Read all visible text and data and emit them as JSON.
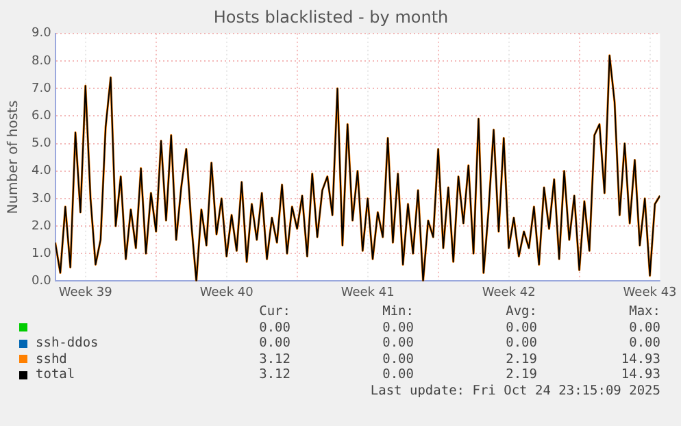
{
  "chart_data": {
    "type": "line",
    "title": "Hosts blacklisted - by month",
    "ylabel": "Number of hosts",
    "x": [
      "2025-09-24T00:00",
      "2025-09-24T06:00",
      "2025-09-24T12:00",
      "2025-09-24T18:00",
      "2025-09-25T00:00",
      "2025-09-25T06:00",
      "2025-09-25T12:00",
      "2025-09-25T18:00",
      "2025-09-26T00:00",
      "2025-09-26T06:00",
      "2025-09-26T12:00",
      "2025-09-26T18:00",
      "2025-09-27T00:00",
      "2025-09-27T06:00",
      "2025-09-27T12:00",
      "2025-09-27T18:00",
      "2025-09-28T00:00",
      "2025-09-28T06:00",
      "2025-09-28T12:00",
      "2025-09-28T18:00",
      "2025-09-29T00:00",
      "2025-09-29T06:00",
      "2025-09-29T12:00",
      "2025-09-29T18:00",
      "2025-09-30T00:00",
      "2025-09-30T06:00",
      "2025-09-30T12:00",
      "2025-09-30T18:00",
      "2025-10-01T00:00",
      "2025-10-01T06:00",
      "2025-10-01T12:00",
      "2025-10-01T18:00",
      "2025-10-02T00:00",
      "2025-10-02T06:00",
      "2025-10-02T12:00",
      "2025-10-02T18:00",
      "2025-10-03T00:00",
      "2025-10-03T06:00",
      "2025-10-03T12:00",
      "2025-10-03T18:00",
      "2025-10-04T00:00",
      "2025-10-04T06:00",
      "2025-10-04T12:00",
      "2025-10-04T18:00",
      "2025-10-05T00:00",
      "2025-10-05T06:00",
      "2025-10-05T12:00",
      "2025-10-05T18:00",
      "2025-10-06T00:00",
      "2025-10-06T06:00",
      "2025-10-06T12:00",
      "2025-10-06T18:00",
      "2025-10-07T00:00",
      "2025-10-07T06:00",
      "2025-10-07T12:00",
      "2025-10-07T18:00",
      "2025-10-08T00:00",
      "2025-10-08T06:00",
      "2025-10-08T12:00",
      "2025-10-08T18:00",
      "2025-10-09T00:00",
      "2025-10-09T06:00",
      "2025-10-09T12:00",
      "2025-10-09T18:00",
      "2025-10-10T00:00",
      "2025-10-10T06:00",
      "2025-10-10T12:00",
      "2025-10-10T18:00",
      "2025-10-11T00:00",
      "2025-10-11T06:00",
      "2025-10-11T12:00",
      "2025-10-11T18:00",
      "2025-10-12T00:00",
      "2025-10-12T06:00",
      "2025-10-12T12:00",
      "2025-10-12T18:00",
      "2025-10-13T00:00",
      "2025-10-13T06:00",
      "2025-10-13T12:00",
      "2025-10-13T18:00",
      "2025-10-14T00:00",
      "2025-10-14T06:00",
      "2025-10-14T12:00",
      "2025-10-14T18:00",
      "2025-10-15T00:00",
      "2025-10-15T06:00",
      "2025-10-15T12:00",
      "2025-10-15T18:00",
      "2025-10-16T00:00",
      "2025-10-16T06:00",
      "2025-10-16T12:00",
      "2025-10-16T18:00",
      "2025-10-17T00:00",
      "2025-10-17T06:00",
      "2025-10-17T12:00",
      "2025-10-17T18:00",
      "2025-10-18T00:00",
      "2025-10-18T06:00",
      "2025-10-18T12:00",
      "2025-10-18T18:00",
      "2025-10-19T00:00",
      "2025-10-19T06:00",
      "2025-10-19T12:00",
      "2025-10-19T18:00",
      "2025-10-20T00:00",
      "2025-10-20T06:00",
      "2025-10-20T12:00",
      "2025-10-20T18:00",
      "2025-10-21T00:00",
      "2025-10-21T06:00",
      "2025-10-21T12:00",
      "2025-10-21T18:00",
      "2025-10-22T00:00",
      "2025-10-22T06:00",
      "2025-10-22T12:00",
      "2025-10-22T18:00",
      "2025-10-23T00:00",
      "2025-10-23T06:00",
      "2025-10-23T12:00",
      "2025-10-23T18:00",
      "2025-10-24T00:00"
    ],
    "series": [
      {
        "color": "#00cc00",
        "values": [
          null,
          null,
          null,
          null,
          null,
          null,
          null,
          null,
          null,
          null,
          null,
          null,
          null,
          null,
          null,
          null,
          null,
          null,
          null,
          null,
          null,
          null,
          null,
          null,
          null,
          null,
          null,
          null,
          null,
          null,
          null,
          null,
          null,
          null,
          null,
          null,
          null,
          null,
          null,
          null,
          null,
          null,
          null,
          null,
          null,
          null,
          null,
          null,
          null,
          null,
          null,
          null,
          null,
          null,
          null,
          null,
          null,
          null,
          null,
          null,
          null,
          null,
          null,
          null,
          null,
          null,
          null,
          null,
          null,
          null,
          null,
          null,
          null,
          null,
          null,
          null,
          null,
          null,
          null,
          null,
          null,
          null,
          null,
          null,
          null,
          null,
          null,
          null,
          null,
          null,
          null,
          null,
          null,
          null,
          null,
          null,
          null,
          null,
          null,
          null,
          null,
          null,
          null,
          null,
          null,
          null,
          null,
          null,
          null,
          null,
          null,
          null,
          null,
          null,
          null,
          null,
          null,
          null,
          null,
          null,
          null
        ]
      },
      {
        "name": "ssh-ddos",
        "color": "#0066b3",
        "values": [
          null,
          null,
          null,
          null,
          null,
          null,
          null,
          null,
          null,
          null,
          null,
          null,
          null,
          null,
          null,
          null,
          null,
          null,
          null,
          null,
          null,
          null,
          null,
          null,
          null,
          null,
          null,
          null,
          null,
          null,
          null,
          null,
          null,
          null,
          null,
          null,
          null,
          null,
          null,
          null,
          null,
          null,
          null,
          null,
          null,
          null,
          null,
          null,
          null,
          null,
          null,
          null,
          null,
          null,
          null,
          null,
          null,
          null,
          null,
          null,
          null,
          null,
          null,
          null,
          null,
          null,
          null,
          null,
          null,
          null,
          null,
          null,
          null,
          null,
          null,
          null,
          null,
          null,
          null,
          null,
          null,
          null,
          null,
          null,
          null,
          null,
          null,
          null,
          null,
          null,
          null,
          null,
          null,
          null,
          null,
          null,
          null,
          null,
          null,
          null,
          null,
          null,
          null,
          null,
          null,
          null,
          null,
          null,
          null,
          null,
          null,
          null,
          null,
          null,
          null,
          null,
          null,
          null,
          null,
          null,
          null
        ]
      },
      {
        "name": "sshd",
        "color": "#ff8000",
        "values": [
          1.4,
          0.3,
          2.7,
          0.5,
          5.4,
          2.5,
          7.1,
          3.0,
          0.6,
          1.5,
          5.6,
          7.4,
          2.0,
          3.8,
          0.8,
          2.6,
          1.2,
          4.1,
          1.0,
          3.2,
          1.8,
          5.1,
          2.2,
          5.3,
          1.5,
          3.4,
          4.8,
          2.1,
          0.0,
          2.6,
          1.3,
          4.3,
          1.7,
          3.0,
          0.9,
          2.4,
          1.1,
          3.6,
          0.7,
          2.8,
          1.5,
          3.2,
          0.8,
          2.3,
          1.4,
          3.5,
          1.0,
          2.7,
          1.9,
          3.1,
          0.9,
          3.9,
          1.6,
          3.3,
          3.8,
          2.4,
          7.0,
          1.3,
          5.7,
          2.2,
          4.0,
          1.1,
          3.0,
          0.8,
          2.5,
          1.6,
          5.2,
          1.4,
          3.9,
          0.6,
          2.8,
          1.0,
          3.3,
          0.0,
          2.2,
          1.6,
          4.8,
          1.2,
          3.4,
          0.7,
          3.8,
          2.1,
          4.2,
          1.0,
          5.9,
          0.3,
          2.6,
          5.5,
          1.8,
          5.2,
          1.2,
          2.3,
          0.9,
          1.8,
          1.2,
          2.7,
          0.6,
          3.4,
          1.9,
          3.7,
          0.8,
          4.0,
          1.5,
          3.1,
          0.4,
          2.9,
          1.1,
          5.3,
          5.7,
          3.2,
          8.2,
          6.5,
          2.4,
          5.0,
          2.1,
          4.4,
          1.3,
          3.0,
          0.2,
          2.8,
          3.1
        ]
      },
      {
        "name": "total",
        "color": "#000000",
        "values": [
          1.4,
          0.3,
          2.7,
          0.5,
          5.4,
          2.5,
          7.1,
          3.0,
          0.6,
          1.5,
          5.6,
          7.4,
          2.0,
          3.8,
          0.8,
          2.6,
          1.2,
          4.1,
          1.0,
          3.2,
          1.8,
          5.1,
          2.2,
          5.3,
          1.5,
          3.4,
          4.8,
          2.1,
          0.0,
          2.6,
          1.3,
          4.3,
          1.7,
          3.0,
          0.9,
          2.4,
          1.1,
          3.6,
          0.7,
          2.8,
          1.5,
          3.2,
          0.8,
          2.3,
          1.4,
          3.5,
          1.0,
          2.7,
          1.9,
          3.1,
          0.9,
          3.9,
          1.6,
          3.3,
          3.8,
          2.4,
          7.0,
          1.3,
          5.7,
          2.2,
          4.0,
          1.1,
          3.0,
          0.8,
          2.5,
          1.6,
          5.2,
          1.4,
          3.9,
          0.6,
          2.8,
          1.0,
          3.3,
          0.0,
          2.2,
          1.6,
          4.8,
          1.2,
          3.4,
          0.7,
          3.8,
          2.1,
          4.2,
          1.0,
          5.9,
          0.3,
          2.6,
          5.5,
          1.8,
          5.2,
          1.2,
          2.3,
          0.9,
          1.8,
          1.2,
          2.7,
          0.6,
          3.4,
          1.9,
          3.7,
          0.8,
          4.0,
          1.5,
          3.1,
          0.4,
          2.9,
          1.1,
          5.3,
          5.7,
          3.2,
          8.2,
          6.5,
          2.4,
          5.0,
          2.1,
          4.4,
          1.3,
          3.0,
          0.2,
          2.8,
          3.1
        ]
      }
    ],
    "xlim": [
      "2025-09-24T00:00",
      "2025-10-24T00:00"
    ],
    "xticks": [
      {
        "value": "2025-09-25T12:00",
        "label": "Week 39"
      },
      {
        "value": "2025-09-29T00:00",
        "label": null
      },
      {
        "value": "2025-10-02T12:00",
        "label": "Week 40"
      },
      {
        "value": "2025-10-06T00:00",
        "label": null
      },
      {
        "value": "2025-10-09T12:00",
        "label": "Week 41"
      },
      {
        "value": "2025-10-13T00:00",
        "label": null
      },
      {
        "value": "2025-10-16T12:00",
        "label": "Week 42"
      },
      {
        "value": "2025-10-20T00:00",
        "label": null
      },
      {
        "value": "2025-10-23T12:00",
        "label": "Week 43"
      }
    ],
    "ylim": [
      0,
      9
    ],
    "yticks": [
      {
        "value": 0,
        "label": "0.0"
      },
      {
        "value": 1,
        "label": "1.0"
      },
      {
        "value": 2,
        "label": "2.0"
      },
      {
        "value": 3,
        "label": "3.0"
      },
      {
        "value": 4,
        "label": "4.0"
      },
      {
        "value": 5,
        "label": "5.0"
      },
      {
        "value": 6,
        "label": "6.0"
      },
      {
        "value": 7,
        "label": "7.0"
      },
      {
        "value": 8,
        "label": "8.0"
      },
      {
        "value": 9,
        "label": "9.0"
      }
    ],
    "grid": true,
    "legend": "bottom",
    "marker": "none",
    "line_style": "solid",
    "annotations": [
      "Cur:",
      "Min:",
      "Avg:",
      "Max:",
      "0.00",
      "0.00",
      "0.00",
      "0.00",
      "0.00",
      "0.00",
      "0.00",
      "0.00",
      "3.12",
      "0.00",
      "2.19",
      "14.93",
      "3.12",
      "0.00",
      "2.19",
      "14.93",
      "Last update: Fri Oct 24 23:15:09 2025"
    ]
  }
}
